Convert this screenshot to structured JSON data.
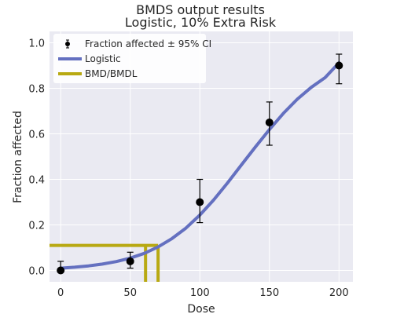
{
  "chart_data": {
    "type": "scatter",
    "title": "BMDS output results",
    "subtitle": "Logistic, 10% Extra Risk",
    "xlabel": "Dose",
    "ylabel": "Fraction affected",
    "xlim": [
      -8,
      210
    ],
    "ylim": [
      -0.05,
      1.05
    ],
    "x_ticks": [
      0,
      50,
      100,
      150,
      200
    ],
    "x_tick_labels": [
      "0",
      "50",
      "100",
      "150",
      "200"
    ],
    "y_ticks": [
      0.0,
      0.2,
      0.4,
      0.6,
      0.8,
      1.0
    ],
    "y_tick_labels": [
      "0.0",
      "0.2",
      "0.4",
      "0.6",
      "0.8",
      "1.0"
    ],
    "grid": true,
    "legend_position": "top-left",
    "series": [
      {
        "name": "Fraction affected ± 95% CI",
        "kind": "errorbar",
        "color": "#000000",
        "x": [
          0,
          50,
          100,
          150,
          200
        ],
        "y": [
          0.0,
          0.04,
          0.3,
          0.65,
          0.9
        ],
        "y_lower": [
          0.0,
          0.01,
          0.21,
          0.55,
          0.82
        ],
        "y_upper": [
          0.04,
          0.08,
          0.4,
          0.74,
          0.95
        ]
      },
      {
        "name": "Logistic",
        "kind": "curve",
        "color": "#6470c0",
        "x": [
          0,
          10,
          20,
          30,
          40,
          50,
          60,
          70,
          80,
          90,
          100,
          110,
          120,
          130,
          140,
          150,
          160,
          170,
          180,
          190,
          200
        ],
        "y": [
          0.01,
          0.014,
          0.02,
          0.028,
          0.039,
          0.054,
          0.075,
          0.103,
          0.14,
          0.186,
          0.243,
          0.31,
          0.385,
          0.464,
          0.543,
          0.619,
          0.69,
          0.752,
          0.804,
          0.847,
          0.912
        ]
      },
      {
        "name": "BMD/BMDL",
        "kind": "threshold",
        "color": "#b8a912",
        "bmr_y": 0.11,
        "bmd": 70,
        "bmdl": 61
      }
    ]
  }
}
